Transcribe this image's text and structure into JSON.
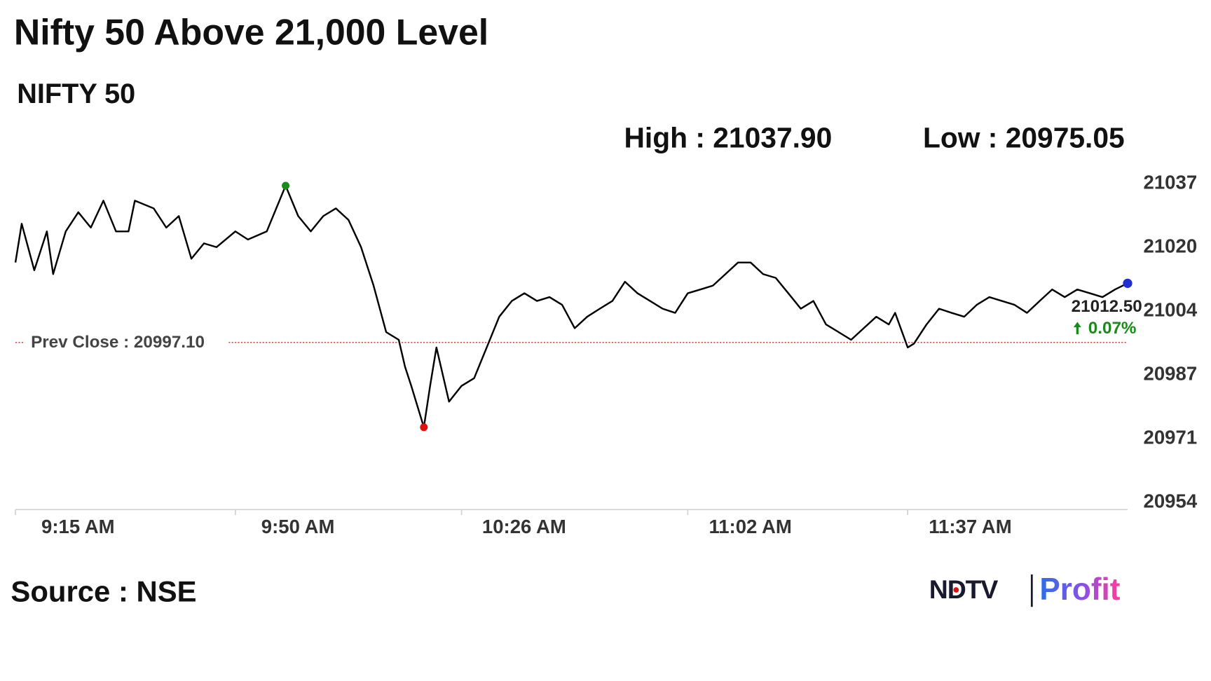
{
  "chart_data": {
    "type": "line",
    "title": "Nifty 50 Above 21,000 Level",
    "subtitle": "NIFTY 50",
    "high": {
      "label": "High :",
      "value": 21037.9,
      "value_label": "21037.90",
      "color": "#1a8a1a"
    },
    "low": {
      "label": "Low :",
      "value": 20975.05,
      "value_label": "20975.05",
      "color": "#e01010"
    },
    "prev_close": {
      "label": "Prev Close :",
      "value": 20997.1,
      "value_label": "20997.10",
      "color": "#c0392b"
    },
    "last": {
      "value": 21012.5,
      "value_label": "21012.50",
      "change": 0.07,
      "change_label": "0.07%",
      "color": "#1f2fd0",
      "change_color": "#1a8a1a"
    },
    "x": [
      "9:15 AM",
      "9:16 AM",
      "9:18 AM",
      "9:20 AM",
      "9:21 AM",
      "9:23 AM",
      "9:25 AM",
      "9:27 AM",
      "9:29 AM",
      "9:31 AM",
      "9:33 AM",
      "9:34 AM",
      "9:37 AM",
      "9:39 AM",
      "9:41 AM",
      "9:43 AM",
      "9:45 AM",
      "9:47 AM",
      "9:50 AM",
      "9:52 AM",
      "9:55 AM",
      "9:58 AM",
      "10:00 AM",
      "10:02 AM",
      "10:04 AM",
      "10:06 AM",
      "10:08 AM",
      "10:10 AM",
      "10:12 AM",
      "10:14 AM",
      "10:16 AM",
      "10:17 AM",
      "10:18 AM",
      "10:20 AM",
      "10:21 AM",
      "10:22 AM",
      "10:24 AM",
      "10:26 AM",
      "10:28 AM",
      "10:30 AM",
      "10:32 AM",
      "10:34 AM",
      "10:36 AM",
      "10:38 AM",
      "10:40 AM",
      "10:42 AM",
      "10:44 AM",
      "10:46 AM",
      "10:48 AM",
      "10:50 AM",
      "10:52 AM",
      "10:54 AM",
      "10:56 AM",
      "10:58 AM",
      "11:00 AM",
      "11:02 AM",
      "11:04 AM",
      "11:06 AM",
      "11:08 AM",
      "11:10 AM",
      "11:12 AM",
      "11:14 AM",
      "11:16 AM",
      "11:18 AM",
      "11:20 AM",
      "11:22 AM",
      "11:24 AM",
      "11:26 AM",
      "11:28 AM",
      "11:30 AM",
      "11:32 AM",
      "11:34 AM",
      "11:35 AM",
      "11:37 AM",
      "11:38 AM",
      "11:40 AM",
      "11:42 AM",
      "11:44 AM",
      "11:46 AM",
      "11:48 AM",
      "11:50 AM",
      "11:52 AM",
      "11:54 AM",
      "11:56 AM",
      "11:58 AM",
      "12:00 PM",
      "12:02 PM",
      "12:04 PM",
      "12:06 PM",
      "12:08 PM",
      "12:10 PM",
      "12:12 PM"
    ],
    "values": [
      21017.9,
      21028.0,
      21015.9,
      21026.0,
      21014.9,
      21026.0,
      21031.0,
      21027.0,
      21034.0,
      21026.0,
      21026.0,
      21034.0,
      21032.0,
      21027.0,
      21030.0,
      21018.9,
      21022.9,
      21021.9,
      21026.0,
      21023.9,
      21026.0,
      21037.9,
      21030.0,
      21026.0,
      21030.0,
      21032.0,
      21029.0,
      21021.9,
      21011.9,
      20999.8,
      20997.8,
      20990.8,
      20985.8,
      20975.05,
      20985.8,
      20995.8,
      20981.7,
      20985.8,
      20987.8,
      20995.8,
      21003.8,
      21007.9,
      21009.9,
      21007.9,
      21008.9,
      21006.9,
      21000.8,
      21003.8,
      21005.9,
      21007.9,
      21012.9,
      21009.9,
      21007.9,
      21005.9,
      21004.8,
      21009.9,
      21010.9,
      21011.9,
      21014.9,
      21017.9,
      21017.9,
      21014.9,
      21013.9,
      21009.9,
      21005.9,
      21007.9,
      21001.8,
      20999.8,
      20997.8,
      21000.8,
      21003.8,
      21001.8,
      21004.8,
      20995.8,
      20996.8,
      21001.8,
      21005.9,
      21004.8,
      21003.8,
      21006.9,
      21008.9,
      21007.9,
      21006.9,
      21004.8,
      21007.9,
      21010.9,
      21008.9,
      21010.9,
      21009.9,
      21008.9,
      21010.9,
      21012.5
    ],
    "color": "#000000",
    "ylim": [
      20954,
      21037
    ],
    "yticks": [
      {
        "value": 21037,
        "label": "21037"
      },
      {
        "value": 21020.4,
        "label": "21020"
      },
      {
        "value": 21003.8,
        "label": "21004"
      },
      {
        "value": 20987.2,
        "label": "20987"
      },
      {
        "value": 20970.6,
        "label": "20971"
      },
      {
        "value": 20954,
        "label": "20954"
      }
    ],
    "xticks": [
      "9:15 AM",
      "9:50 AM",
      "10:26 AM",
      "11:02 AM",
      "11:37 AM"
    ],
    "source": "Source : NSE",
    "logo": {
      "brand": "NDTV",
      "product": "Profit"
    }
  }
}
